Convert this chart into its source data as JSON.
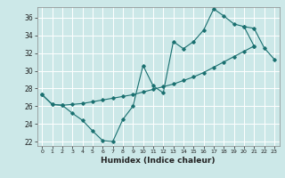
{
  "xlabel": "Humidex (Indice chaleur)",
  "bg_color": "#cce8e8",
  "grid_color": "#ffffff",
  "line_color": "#1a7070",
  "xlim": [
    -0.5,
    23.5
  ],
  "ylim": [
    21.5,
    37.2
  ],
  "xticks": [
    0,
    1,
    2,
    3,
    4,
    5,
    6,
    7,
    8,
    9,
    10,
    11,
    12,
    13,
    14,
    15,
    16,
    17,
    18,
    19,
    20,
    21,
    22,
    23
  ],
  "yticks": [
    22,
    24,
    26,
    28,
    30,
    32,
    34,
    36
  ],
  "line1": [
    27.3,
    26.2,
    26.1,
    25.2,
    24.4,
    23.2,
    22.1,
    22.0,
    24.5,
    26.0,
    30.6,
    28.3,
    27.5,
    33.3,
    32.5,
    33.3,
    34.6,
    37.0,
    36.2,
    35.3,
    35.0,
    32.8,
    null,
    null
  ],
  "line2": [
    27.3,
    26.2,
    26.1,
    26.2,
    26.3,
    26.5,
    26.7,
    26.9,
    27.1,
    27.3,
    27.6,
    27.9,
    28.2,
    28.5,
    28.9,
    29.3,
    29.8,
    30.4,
    31.0,
    31.6,
    32.2,
    32.8,
    null,
    null
  ],
  "line3": [
    null,
    null,
    null,
    null,
    null,
    null,
    null,
    null,
    null,
    null,
    null,
    null,
    null,
    null,
    null,
    null,
    null,
    null,
    null,
    null,
    35.0,
    34.8,
    32.6,
    31.3
  ]
}
